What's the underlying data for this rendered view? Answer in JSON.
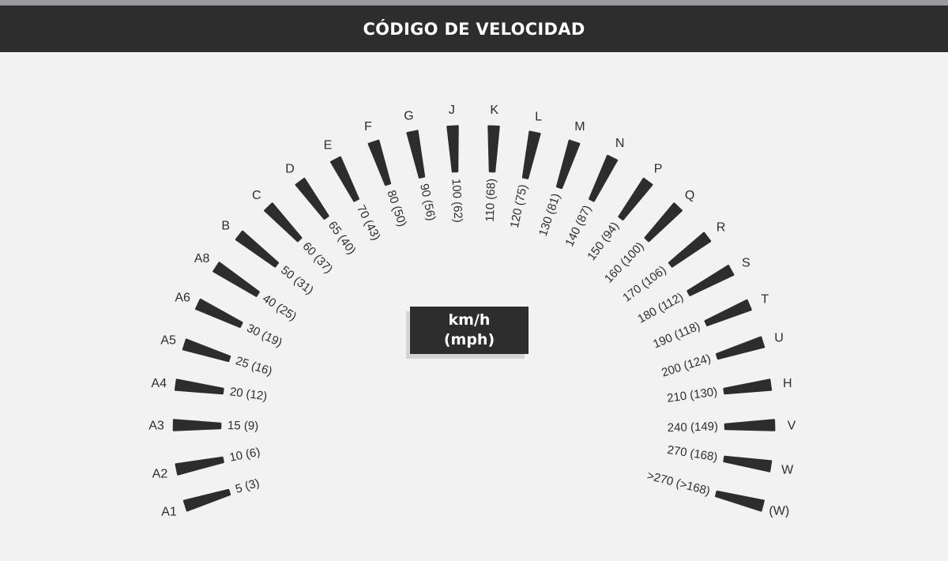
{
  "header": {
    "title": "CÓDIGO DE VELOCIDAD"
  },
  "legend_box": {
    "line1": "km/h",
    "line2": "(mph)"
  },
  "colors": {
    "header_bg": "#2d2d2d",
    "bar": "#2d2d2d",
    "background": "#f2f2f2"
  },
  "ratings": [
    {
      "code": "A1",
      "label": "5 (3)"
    },
    {
      "code": "A2",
      "label": "10 (6)"
    },
    {
      "code": "A3",
      "label": "15 (9)"
    },
    {
      "code": "A4",
      "label": "20 (12)"
    },
    {
      "code": "A5",
      "label": "25 (16)"
    },
    {
      "code": "A6",
      "label": "30 (19)"
    },
    {
      "code": "A8",
      "label": "40 (25)"
    },
    {
      "code": "B",
      "label": "50 (31)"
    },
    {
      "code": "C",
      "label": "60 (37)"
    },
    {
      "code": "D",
      "label": "65 (40)"
    },
    {
      "code": "E",
      "label": "70 (43)"
    },
    {
      "code": "F",
      "label": "80 (50)"
    },
    {
      "code": "G",
      "label": "90 (56)"
    },
    {
      "code": "J",
      "label": "100 (62)"
    },
    {
      "code": "K",
      "label": "110 (68)"
    },
    {
      "code": "L",
      "label": "120 (75)"
    },
    {
      "code": "M",
      "label": "130 (81)"
    },
    {
      "code": "N",
      "label": "140 (87)"
    },
    {
      "code": "P",
      "label": "150 (94)"
    },
    {
      "code": "Q",
      "label": "160 (100)"
    },
    {
      "code": "R",
      "label": "170 (106)"
    },
    {
      "code": "S",
      "label": "180 (112)"
    },
    {
      "code": "T",
      "label": "190 (118)"
    },
    {
      "code": "U",
      "label": "200 (124)"
    },
    {
      "code": "H",
      "label": "210 (130)"
    },
    {
      "code": "V",
      "label": "240 (149)"
    },
    {
      "code": "W",
      "label": "270 (168)"
    },
    {
      "code": "(W)",
      "label": ">270 (>168)"
    }
  ]
}
